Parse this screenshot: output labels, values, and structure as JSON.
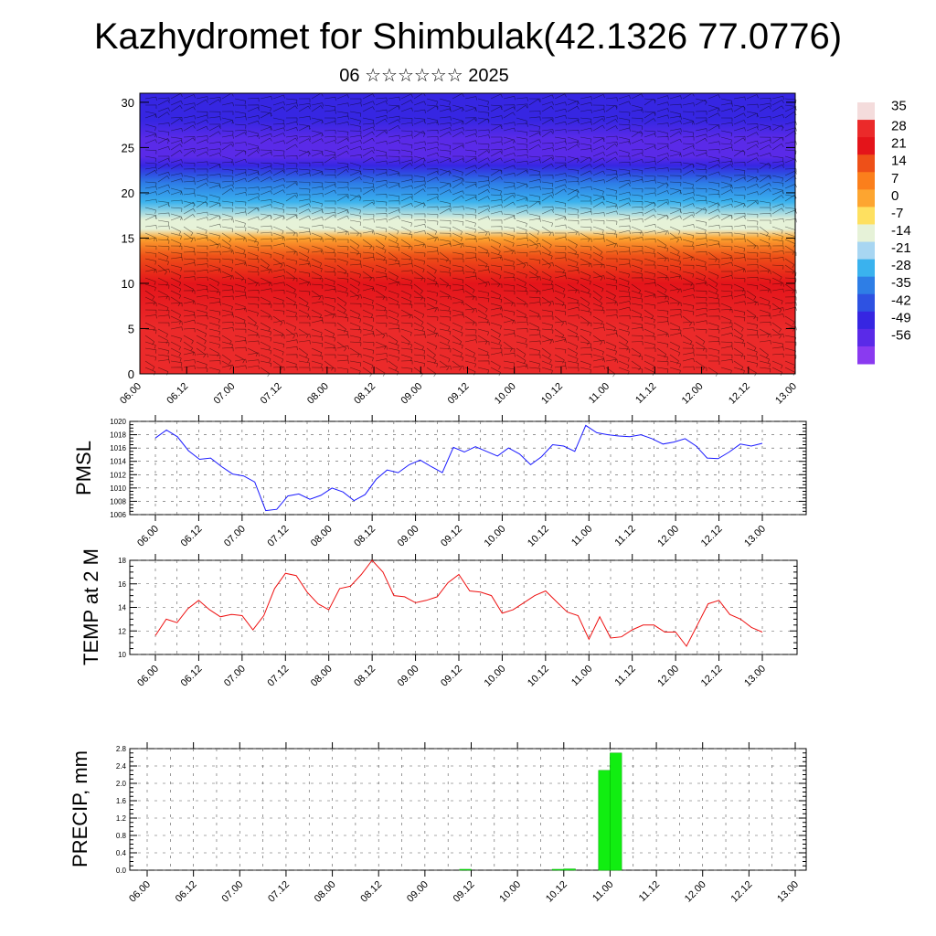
{
  "page": {
    "title": "Kazhydromet for Shimbulak(42.1326 77.0776)",
    "subtitle": "06 ☆☆☆☆☆☆ 2025"
  },
  "chart_data": [
    {
      "type": "heatmap",
      "name": "vertical-cross-section",
      "x_tick_labels": [
        "06.00",
        "06.12",
        "07.00",
        "07.12",
        "08.00",
        "08.12",
        "09.00",
        "09.12",
        "10.00",
        "10.12",
        "11.00",
        "11.12",
        "12.00",
        "12.12",
        "13.00"
      ],
      "y_ticks": [
        0,
        5,
        10,
        15,
        20,
        25,
        30
      ],
      "ylim": [
        0,
        31
      ],
      "colorbar_labels": [
        "35",
        "28",
        "21",
        "14",
        "7",
        "0",
        "-7",
        "-14",
        "-21",
        "-28",
        "-35",
        "-42",
        "-49",
        "-56"
      ],
      "colorbar_colors": [
        "#f4dcdc",
        "#eb2a2a",
        "#e4141a",
        "#ee5018",
        "#fb7f1c",
        "#fda530",
        "#fee060",
        "#e6f2d8",
        "#a8d6f2",
        "#3ab2ee",
        "#2e7ee6",
        "#2e52e2",
        "#3626e2",
        "#5a2ae8",
        "#8a3af0"
      ],
      "temp_profile": {
        "altitudes": [
          0,
          5,
          10,
          13,
          15,
          16,
          17,
          19,
          21,
          22,
          23,
          24,
          25,
          26,
          28,
          31
        ],
        "temps": [
          30,
          28,
          20,
          12,
          0,
          -12,
          -15,
          -25,
          -33,
          -40,
          -50,
          -56,
          -58,
          -54,
          -48,
          -48
        ]
      },
      "grid": false
    },
    {
      "type": "line",
      "ylabel": "PMSL",
      "x_tick_labels": [
        "06.00",
        "06.12",
        "07.00",
        "07.12",
        "08.00",
        "08.12",
        "09.00",
        "09.12",
        "10.00",
        "10.12",
        "11.00",
        "11.12",
        "12.00",
        "12.12",
        "13.00"
      ],
      "y_ticks": [
        "1006",
        "1008",
        "1010",
        "1012",
        "1014",
        "1016",
        "1018",
        "1020"
      ],
      "ylim": [
        1006,
        1020
      ],
      "color": "#1a1aff",
      "values": [
        1017.5,
        1018.7,
        1017.7,
        1015.6,
        1014.3,
        1014.5,
        1013.2,
        1012.1,
        1011.8,
        1010.9,
        1006.6,
        1006.8,
        1008.8,
        1009.1,
        1008.3,
        1008.9,
        1010.0,
        1009.4,
        1008.1,
        1009.0,
        1011.3,
        1012.7,
        1012.3,
        1013.5,
        1014.2,
        1013.2,
        1012.3,
        1016.1,
        1015.4,
        1016.2,
        1015.5,
        1014.8,
        1016.0,
        1015.1,
        1013.5,
        1014.7,
        1016.5,
        1016.3,
        1015.5,
        1019.4,
        1018.3,
        1018.0,
        1017.8,
        1017.7,
        1018.0,
        1017.4,
        1016.6,
        1016.9,
        1017.4,
        1016.3,
        1014.5,
        1014.4,
        1015.4,
        1016.6,
        1016.3,
        1016.7
      ]
    },
    {
      "type": "line",
      "ylabel": "TEMP at 2 M",
      "x_tick_labels": [
        "06.00",
        "06.12",
        "07.00",
        "07.12",
        "08.00",
        "08.12",
        "09.00",
        "09.12",
        "10.00",
        "10.12",
        "11.00",
        "11.12",
        "12.00",
        "12.12",
        "13.00"
      ],
      "y_ticks": [
        "10",
        "12",
        "14",
        "16",
        "18"
      ],
      "ylim": [
        10,
        18
      ],
      "color": "#ee1111",
      "values": [
        11.6,
        13.0,
        12.7,
        13.9,
        14.6,
        13.8,
        13.2,
        13.4,
        13.3,
        12.1,
        13.3,
        15.6,
        16.9,
        16.7,
        15.3,
        14.3,
        13.8,
        15.6,
        15.8,
        16.8,
        18.0,
        17.0,
        15.0,
        14.9,
        14.4,
        14.6,
        14.9,
        16.1,
        16.8,
        15.4,
        15.3,
        15.0,
        13.5,
        13.8,
        14.4,
        15.0,
        15.4,
        14.5,
        13.6,
        13.3,
        11.3,
        13.2,
        11.4,
        11.5,
        12.1,
        12.5,
        12.5,
        11.9,
        11.9,
        10.7,
        12.5,
        14.3,
        14.6,
        13.4,
        13.0,
        12.3,
        11.9
      ]
    },
    {
      "type": "bar",
      "ylabel": "PRECIP, mm",
      "x_tick_labels": [
        "06.00",
        "06.12",
        "07.00",
        "07.12",
        "08.00",
        "08.12",
        "09.00",
        "09.12",
        "10.00",
        "10.12",
        "11.00",
        "11.12",
        "12.00",
        "12.12",
        "13.00"
      ],
      "y_ticks": [
        "0.0",
        "0.4",
        "0.8",
        "1.2",
        "1.6",
        "2.0",
        "2.4",
        "2.8"
      ],
      "ylim": [
        0,
        2.8
      ],
      "color": "#11ee11",
      "bars": [
        {
          "x": "09.12",
          "value": 0.02
        },
        {
          "x": "10.12",
          "value": 0.02
        },
        {
          "x": "10.12",
          "value": 0.03
        },
        {
          "x": "11.00",
          "value": 2.3
        },
        {
          "x": "11.00",
          "value": 2.7
        }
      ]
    }
  ]
}
